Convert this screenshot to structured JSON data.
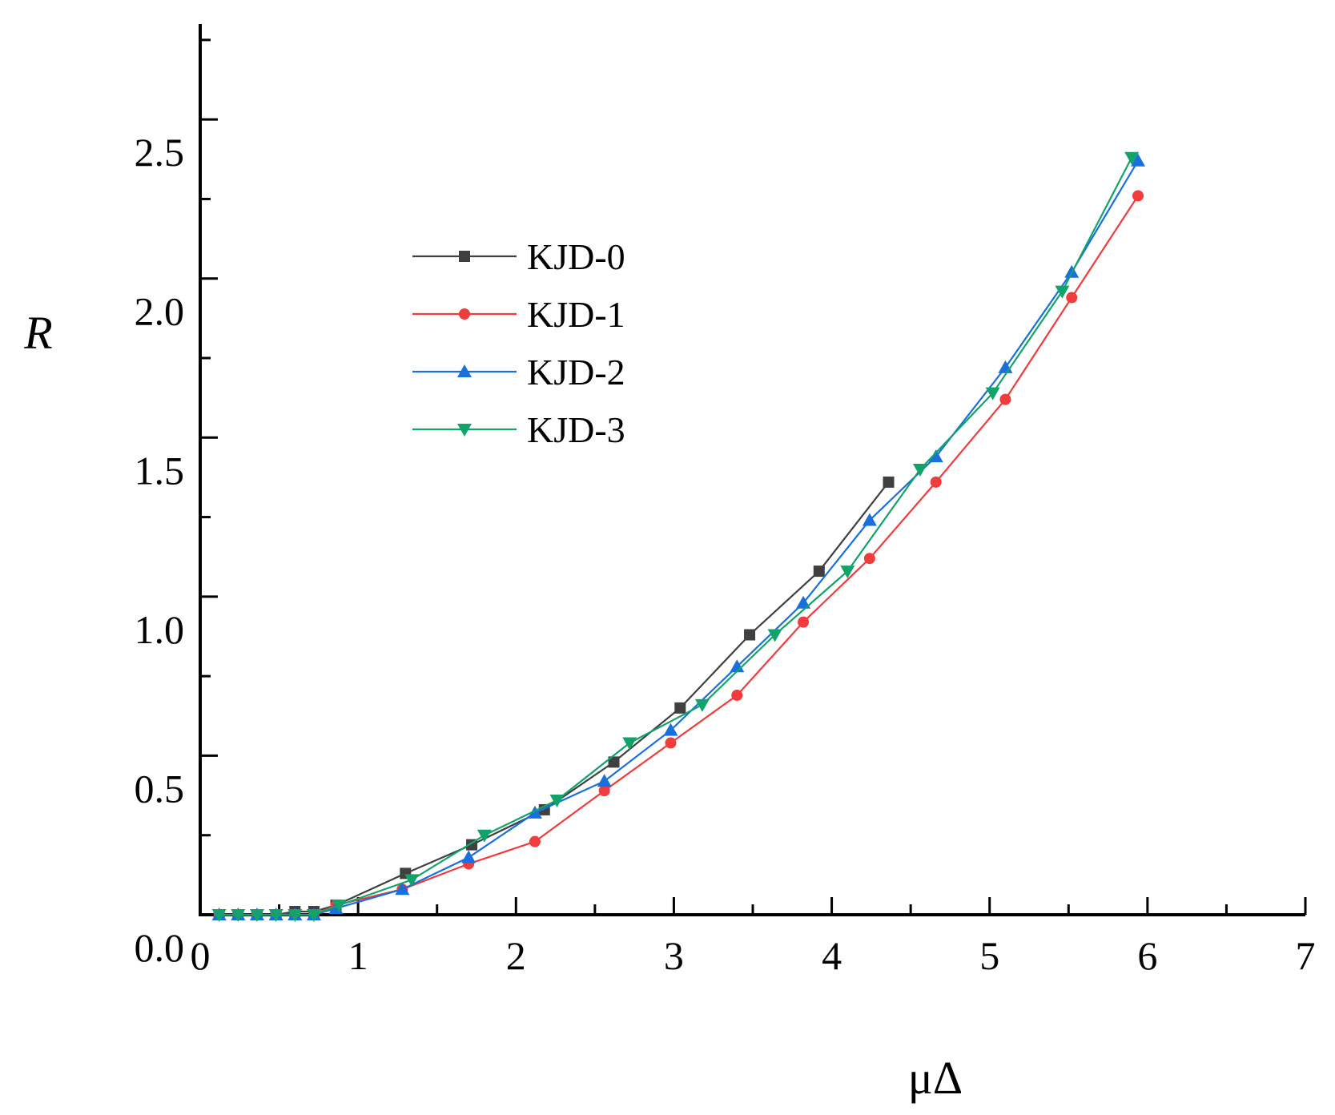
{
  "chart_data": {
    "type": "line",
    "title": "",
    "xlabel": "μΔ",
    "ylabel": "R",
    "xlim": [
      0,
      7
    ],
    "ylim": [
      0,
      2.8
    ],
    "x_ticks": [
      0,
      1,
      2,
      3,
      4,
      5,
      6,
      7
    ],
    "x_tick_labels": [
      "0",
      "1",
      "2",
      "3",
      "4",
      "5",
      "6",
      "7"
    ],
    "y_ticks": [
      0,
      0.5,
      1.0,
      1.5,
      2.0,
      2.5
    ],
    "y_tick_labels": [
      "0.0",
      "0.5",
      "1.0",
      "1.5",
      "2.0",
      "2.5"
    ],
    "legend_position": "upper-left",
    "series": [
      {
        "name": "KJD-0",
        "color": "#404040",
        "marker": "square",
        "x": [
          0.12,
          0.24,
          0.36,
          0.48,
          0.6,
          0.72,
          0.86,
          1.3,
          1.72,
          2.18,
          2.62,
          3.04,
          3.48,
          3.92,
          4.36
        ],
        "y": [
          0.0,
          0.0,
          0.0,
          0.0,
          0.01,
          0.01,
          0.03,
          0.13,
          0.22,
          0.33,
          0.48,
          0.65,
          0.88,
          1.08,
          1.36
        ]
      },
      {
        "name": "KJD-1",
        "color": "#f03c3c",
        "marker": "circle",
        "x": [
          0.12,
          0.24,
          0.36,
          0.48,
          0.6,
          0.72,
          0.86,
          1.28,
          1.7,
          2.12,
          2.56,
          2.98,
          3.4,
          3.82,
          4.24,
          4.66,
          5.1,
          5.52,
          5.94
        ],
        "y": [
          0.0,
          0.0,
          0.0,
          0.0,
          0.0,
          0.0,
          0.03,
          0.08,
          0.16,
          0.23,
          0.39,
          0.54,
          0.69,
          0.92,
          1.12,
          1.36,
          1.62,
          1.94,
          2.26
        ]
      },
      {
        "name": "KJD-2",
        "color": "#1a6fdf",
        "marker": "triangle-up",
        "x": [
          0.12,
          0.24,
          0.36,
          0.48,
          0.6,
          0.72,
          0.86,
          1.28,
          1.7,
          2.12,
          2.56,
          2.98,
          3.4,
          3.82,
          4.24,
          4.66,
          5.1,
          5.52,
          5.94
        ],
        "y": [
          0.0,
          0.0,
          0.0,
          0.0,
          0.0,
          0.0,
          0.02,
          0.08,
          0.18,
          0.32,
          0.42,
          0.58,
          0.78,
          0.98,
          1.24,
          1.44,
          1.72,
          2.02,
          2.37
        ]
      },
      {
        "name": "KJD-3",
        "color": "#12a36a",
        "marker": "triangle-down",
        "x": [
          0.12,
          0.24,
          0.36,
          0.48,
          0.6,
          0.72,
          0.88,
          1.34,
          1.8,
          2.26,
          2.72,
          3.18,
          3.64,
          4.1,
          4.56,
          5.02,
          5.46,
          5.9
        ],
        "y": [
          0.0,
          0.0,
          0.0,
          0.0,
          0.0,
          0.0,
          0.03,
          0.11,
          0.25,
          0.36,
          0.54,
          0.66,
          0.88,
          1.08,
          1.4,
          1.64,
          1.96,
          2.38
        ]
      }
    ]
  }
}
